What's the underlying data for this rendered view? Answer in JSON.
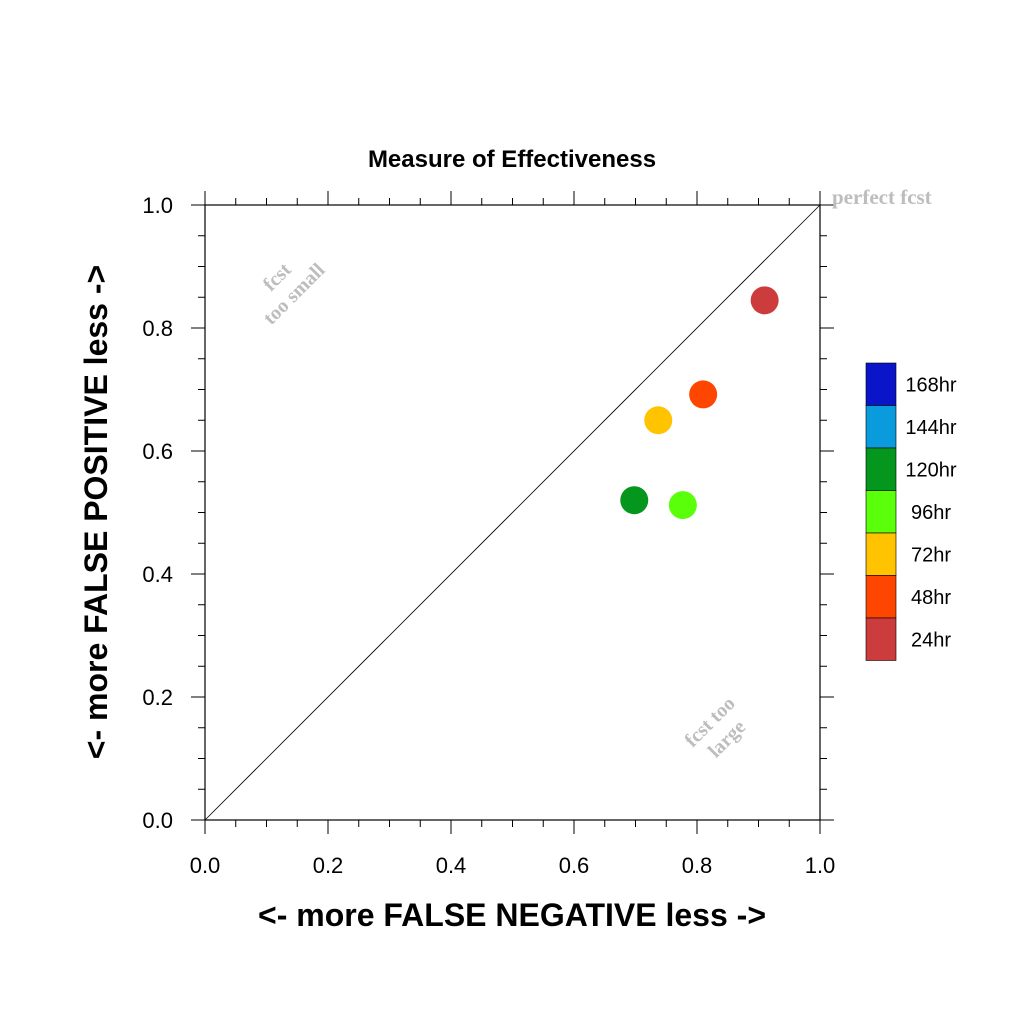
{
  "chart_data": {
    "type": "scatter",
    "title": "Measure of Effectiveness",
    "xlabel": "<- more   FALSE NEGATIVE   less ->",
    "ylabel": "<- more   FALSE POSITIVE   less ->",
    "xlim": [
      0.0,
      1.0
    ],
    "ylim": [
      0.0,
      1.0
    ],
    "xticks": [
      "0.0",
      "0.2",
      "0.4",
      "0.6",
      "0.8",
      "1.0"
    ],
    "yticks": [
      "0.0",
      "0.2",
      "0.4",
      "0.6",
      "0.8",
      "1.0"
    ],
    "grid": false,
    "legend_placement": "right",
    "annotations": {
      "perfect": "perfect fcst",
      "too_small_line1": "fcst",
      "too_small_line2": "too small",
      "too_large_line1": "fcst too",
      "too_large_line2": "large"
    },
    "legend": [
      {
        "label": "168hr",
        "color": "#0A14C8"
      },
      {
        "label": "144hr",
        "color": "#0A9BDC"
      },
      {
        "label": "120hr",
        "color": "#05961E"
      },
      {
        "label": "96hr",
        "color": "#5AFF0A"
      },
      {
        "label": "72hr",
        "color": "#FFC300"
      },
      {
        "label": "48hr",
        "color": "#FF4600"
      },
      {
        "label": "24hr",
        "color": "#CD3C3C"
      }
    ],
    "points": [
      {
        "label": "24hr",
        "x": 0.91,
        "y": 0.845,
        "color": "#CD3C3C"
      },
      {
        "label": "48hr",
        "x": 0.81,
        "y": 0.692,
        "color": "#FF4600"
      },
      {
        "label": "72hr",
        "x": 0.737,
        "y": 0.65,
        "color": "#FFC300"
      },
      {
        "label": "96hr",
        "x": 0.777,
        "y": 0.512,
        "color": "#5AFF0A"
      },
      {
        "label": "120hr",
        "x": 0.698,
        "y": 0.52,
        "color": "#05961E"
      }
    ]
  }
}
